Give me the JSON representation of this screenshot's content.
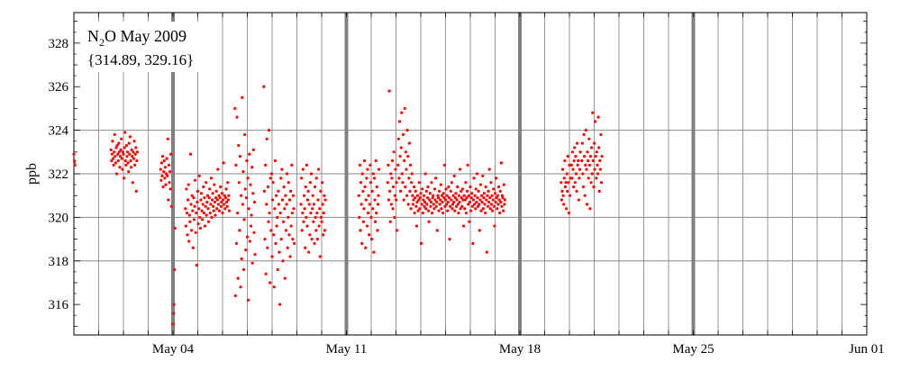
{
  "chart_data": {
    "type": "scatter",
    "title": "N2O May 2009",
    "title_parts": {
      "prefix": "N",
      "subscript": "2",
      "suffix": "O May 2009"
    },
    "range_text": "{314.89, 329.16}",
    "ylabel": "ppb",
    "xlabel": "",
    "x_unit": "date (2009)",
    "xlim": [
      "2009-04-30T00:00",
      "2009-06-01T00:00"
    ],
    "ylim": [
      314.6,
      329.4
    ],
    "x_ticks": [
      {
        "date": "2009-05-04",
        "label": "May 04"
      },
      {
        "date": "2009-05-11",
        "label": "May 11"
      },
      {
        "date": "2009-05-18",
        "label": "May 18"
      },
      {
        "date": "2009-05-25",
        "label": "May 25"
      },
      {
        "date": "2009-06-01",
        "label": "Jun 01"
      }
    ],
    "y_ticks": [
      316,
      318,
      320,
      322,
      324,
      326,
      328
    ],
    "grid": "vertical daily lines; horizontal lines at 318, 320, 322, 324 ppb",
    "week_boundaries": [
      "2009-05-04",
      "2009-05-11",
      "2009-05-18",
      "2009-05-25"
    ],
    "marker_color": "#ff0000",
    "grid_color": "#888888",
    "boundary_color": "#808080",
    "series": [
      {
        "x_start": "2009-04-30T00:00",
        "interval_hours": 0.5,
        "note_precision": "values read from the plot, rounded to 0.1 ppb",
        "segments": [
          {
            "start": "2009-04-30T00:00",
            "values": [
              322.9,
              322.6,
              322.4
            ]
          },
          {
            "start": "2009-05-01T12:00",
            "values": [
              323.1,
              322.6,
              322.9,
              323.5,
              322.7,
              322.4,
              323.0,
              323.8,
              322.8,
              322.5,
              323.2,
              322.0,
              323.3,
              322.9,
              322.6,
              323.4,
              323.0,
              322.3,
              322.8,
              323.1,
              323.6,
              322.7,
              322.2,
              323.0,
              322.9,
              321.8,
              323.2,
              323.9,
              322.6,
              322.4,
              323.3,
              322.8,
              323.0,
              322.5,
              322.1,
              323.4,
              322.9,
              323.7,
              322.6,
              322.3,
              323.1,
              322.8,
              321.6,
              323.0,
              322.7,
              323.5,
              322.4,
              322.9,
              323.2,
              321.2,
              322.6,
              323.0
            ]
          },
          {
            "start": "2009-05-03T12:00",
            "values": [
              322.2,
              321.7,
              322.5,
              321.9,
              322.8,
              321.4,
              322.1,
              322.6,
              321.8,
              322.3,
              321.5,
              322.0,
              322.7,
              321.9,
              323.6,
              320.8,
              322.4,
              321.6,
              322.1,
              321.3,
              322.9,
              320.5
            ]
          },
          {
            "start": "2009-05-04T00:00",
            "values": [
              315.1,
              315.6,
              316.0,
              317.6,
              319.5
            ]
          },
          {
            "start": "2009-05-04T12:00",
            "values": [
              320.4,
              319.6,
              321.3,
              320.2,
              319.2,
              320.8,
              321.5,
              318.9,
              320.1,
              319.8,
              322.9,
              320.6,
              319.4,
              321.0,
              320.3,
              318.6,
              320.9,
              319.9,
              320.5,
              321.7,
              319.3,
              320.2,
              317.8,
              320.7,
              321.2,
              319.7,
              320.4,
              321.9,
              320.0,
              319.5,
              320.8,
              321.1,
              320.3,
              319.9,
              320.6,
              321.4,
              320.2,
              320.9,
              319.6,
              320.5,
              321.6,
              320.1,
              320.7,
              321.0,
              320.4,
              319.8,
              320.9,
              321.3,
              320.2,
              320.6,
              321.8,
              320.0,
              320.8,
              321.1,
              320.5,
              320.3,
              321.5,
              320.7,
              320.1,
              320.9,
              321.2,
              320.4,
              320.8,
              322.2,
              320.6,
              321.0,
              320.3,
              320.9,
              321.4,
              320.5,
              320.7,
              321.1,
              320.2,
              320.8,
              322.5,
              320.6,
              321.0,
              320.4,
              320.9,
              321.3,
              320.7,
              320.5,
              321.6,
              320.8,
              321.0,
              320.3
            ]
          },
          {
            "start": "2009-05-06T12:00",
            "values": [
              325.0,
              316.4,
              322.4,
              318.8,
              324.6,
              320.2,
              317.2,
              323.3,
              321.6,
              319.4,
              322.8,
              316.8,
              321.0,
              318.1,
              325.5,
              320.6,
              322.1,
              317.6,
              319.9,
              323.8,
              321.3,
              318.5,
              320.9,
              322.6,
              319.1,
              321.8,
              316.2,
              320.4,
              322.9,
              318.9,
              321.5,
              319.6,
              320.1,
              322.3,
              317.9,
              321.1,
              323.1,
              319.3,
              320.7,
              318.3
            ]
          },
          {
            "start": "2009-05-07T16:00",
            "values": [
              326.0,
              321.2,
              319.0,
              322.4,
              317.4,
              320.6,
              323.6,
              318.6,
              321.4,
              319.8,
              324.0,
              320.2,
              317.0,
              321.8,
              319.4,
              322.0,
              318.2,
              320.8,
              321.6,
              319.2,
              316.8,
              320.4,
              322.6,
              318.8,
              321.0,
              319.6,
              320.0,
              317.6,
              321.2,
              320.6,
              318.4,
              316.0,
              320.2,
              321.8,
              319.0,
              322.2,
              320.8,
              318.0,
              319.8,
              321.4,
              320.4,
              317.2,
              321.0,
              319.4,
              320.6,
              322.0,
              318.6,
              320.0,
              321.6,
              319.2,
              320.8,
              318.2,
              321.2,
              319.6,
              322.4,
              320.2,
              319.0,
              321.0,
              320.4,
              318.8
            ]
          },
          {
            "start": "2009-05-09T04:00",
            "values": [
              320.6,
              321.8,
              319.4,
              320.2,
              322.2,
              319.8,
              321.0,
              320.4,
              318.6,
              321.4,
              320.0,
              322.4,
              319.6,
              320.8,
              321.2,
              318.4,
              320.6,
              319.2,
              321.6,
              320.2,
              322.0,
              319.0,
              320.4,
              321.0,
              319.8,
              320.6,
              318.8,
              321.4,
              320.0,
              319.4,
              321.8,
              320.2,
              319.0,
              320.8,
              322.2,
              319.6,
              320.4,
              318.2,
              321.2,
              320.0,
              319.8,
              321.6,
              320.6,
              319.2,
              320.2,
              321.0,
              319.4,
              320.8
            ]
          },
          {
            "start": "2009-05-11T12:00",
            "values": [
              321.0,
              320.0,
              322.4,
              319.4,
              321.6,
              320.6,
              318.8,
              322.0,
              321.2,
              319.8,
              320.4,
              322.6,
              321.4,
              318.6,
              320.8,
              321.8,
              319.6,
              322.2,
              320.2,
              321.0,
              319.2,
              320.6,
              322.4,
              321.6,
              320.0,
              319.0,
              321.2,
              320.4,
              322.0,
              318.4,
              321.8,
              320.8,
              319.8,
              322.6,
              320.2,
              321.4,
              319.4,
              320.6,
              321.0,
              322.2
            ]
          },
          {
            "start": "2009-05-12T16:00",
            "values": [
              321.6,
              322.4,
              320.8,
              325.8,
              321.2,
              319.8,
              322.0,
              320.6,
              321.8,
              322.6,
              320.4,
              321.4,
              323.0,
              320.0,
              321.0,
              322.2,
              320.8,
              321.6,
              319.4
            ]
          },
          {
            "start": "2009-05-13T02:00",
            "values": [
              322.4,
              323.6,
              321.8,
              324.4,
              322.8,
              321.2,
              323.2,
              324.8,
              322.0,
              321.6,
              323.8,
              320.8,
              322.6,
              325.0,
              321.4,
              323.0,
              322.2,
              321.0,
              324.0,
              322.8,
              320.6,
              321.8,
              323.4,
              321.2,
              322.4,
              320.4,
              321.6,
              322.0
            ]
          },
          {
            "start": "2009-05-13T16:00",
            "values": [
              321.0,
              320.6,
              320.8,
              321.4,
              320.2,
              320.9,
              321.2,
              320.5,
              319.6,
              320.7,
              321.0,
              320.3,
              320.8,
              321.6,
              320.4,
              320.9,
              321.1,
              318.8,
              320.6,
              321.3,
              320.2,
              320.8,
              321.0,
              320.5,
              320.7,
              322.0,
              320.4,
              321.2,
              320.6,
              320.9,
              321.4,
              320.3,
              319.8,
              320.8,
              321.1,
              320.5,
              320.7,
              321.6,
              320.2,
              320.9,
              321.0,
              320.6,
              320.4,
              321.3,
              320.8,
              321.8,
              320.5,
              320.7,
              319.4,
              321.0,
              320.9,
              320.3,
              321.2,
              320.6,
              320.8,
              321.5,
              320.4,
              321.0,
              320.7,
              320.2,
              321.1,
              320.9,
              322.4,
              320.5,
              320.8,
              321.3,
              320.6,
              321.0,
              320.3,
              320.7,
              321.4,
              320.9,
              319.0,
              320.5,
              321.2,
              320.8,
              321.6,
              320.4,
              320.6,
              321.0,
              320.7,
              321.9,
              320.3,
              320.9,
              321.1,
              320.5,
              320.8,
              321.4,
              320.6,
              320.2,
              321.0,
              320.7,
              322.2,
              320.4,
              321.2,
              320.9,
              320.5,
              321.3,
              320.8,
              319.6
            ]
          },
          {
            "start": "2009-05-15T18:00",
            "values": [
              321.0,
              320.4,
              320.8,
              321.6,
              320.2,
              320.9,
              321.2,
              322.4,
              320.6,
              321.0,
              319.8,
              320.7,
              321.4,
              320.3,
              320.9,
              321.1,
              320.5,
              318.8,
              320.8,
              321.8,
              320.6,
              321.0,
              320.4,
              321.3,
              320.7,
              322.0,
              320.9,
              320.5,
              321.2,
              320.6,
              319.4,
              320.8,
              321.5,
              320.3,
              321.0,
              320.7,
              321.9,
              320.4,
              320.9,
              321.1,
              320.6,
              320.2,
              321.4,
              320.8,
              318.4,
              321.0,
              320.5,
              321.2,
              320.7,
              322.2,
              320.9,
              320.4,
              321.6,
              320.6,
              321.0,
              320.3,
              320.8,
              321.3,
              320.5,
              319.6,
              321.1,
              320.7,
              321.8,
              320.9,
              320.4,
              321.0,
              320.6,
              321.4,
              320.8,
              320.2,
              321.2,
              320.7,
              322.5,
              320.5,
              321.0,
              320.9,
              320.3,
              321.5,
              320.6,
              320.8
            ]
          },
          {
            "start": "2009-05-19T16:00",
            "values": [
              321.6,
              320.8,
              321.2,
              322.2,
              321.0,
              320.6,
              321.8,
              322.6,
              321.4,
              321.6,
              320.4,
              322.0,
              321.2,
              322.8,
              321.6,
              320.2,
              322.4,
              321.0,
              321.8,
              322.4
            ]
          },
          {
            "start": "2009-05-20T02:00",
            "values": [
              322.4,
              321.8,
              323.0,
              322.2,
              321.4,
              322.6,
              323.2,
              321.6,
              322.8,
              322.0,
              321.2,
              323.4,
              322.4,
              322.6,
              320.8,
              321.8,
              322.2,
              323.0
            ]
          },
          {
            "start": "2009-05-20T12:00",
            "values": [
              322.6,
              323.4,
              322.0,
              321.4,
              323.8,
              322.8,
              321.0,
              322.4,
              324.0,
              322.2,
              320.6,
              323.0,
              322.6,
              321.8,
              323.6,
              322.4,
              320.4,
              322.8,
              321.6,
              323.2,
              322.0,
              324.8,
              322.6,
              321.4,
              323.4,
              322.2,
              324.4,
              322.8,
              321.8,
              323.0,
              322.4,
              322.0,
              324.6,
              323.2,
              321.2,
              322.6,
              322.2,
              323.8,
              321.6,
              322.8
            ]
          }
        ]
      }
    ]
  }
}
